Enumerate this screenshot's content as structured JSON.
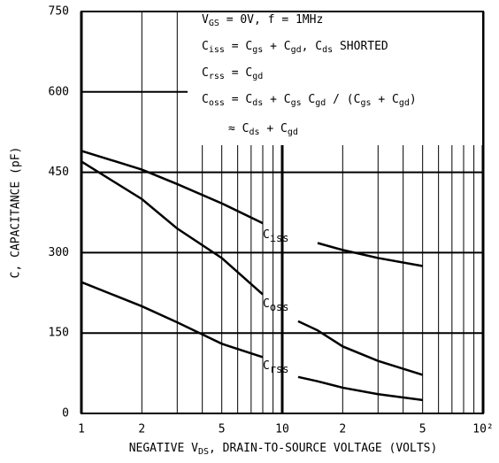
{
  "chart_data": {
    "type": "line",
    "y_label": "C, CAPACITANCE (pF)",
    "x_label": [
      "NEGATIVE V",
      "DS",
      ", DRAIN-TO-SOURCE VOLTAGE (VOLTS)"
    ],
    "annotations": [
      [
        "V",
        "GS",
        " = 0V, f = 1MHz"
      ],
      [
        "C",
        "iss",
        " = C",
        "gs",
        " + C",
        "gd",
        ", C",
        "ds",
        " SHORTED"
      ],
      [
        "C",
        "rss",
        " = C",
        "gd"
      ],
      [
        "C",
        "oss",
        " = C",
        "ds",
        " + C",
        "gs",
        " C",
        "gd",
        " / (C",
        "gs",
        " + C",
        "gd",
        ")"
      ],
      [
        "≈ C",
        "ds",
        " + C",
        "gd"
      ]
    ],
    "x": [
      1,
      2,
      3,
      5,
      8,
      10,
      12,
      15,
      20,
      30,
      50
    ],
    "series": [
      {
        "label": [
          "C",
          "iss"
        ],
        "color": "#000000",
        "values": [
          490,
          455,
          428,
          392,
          355,
          null,
          null,
          318,
          305,
          290,
          275
        ]
      },
      {
        "label": [
          "C",
          "oss"
        ],
        "color": "#000000",
        "values": [
          470,
          400,
          345,
          290,
          222,
          null,
          172,
          155,
          125,
          98,
          72
        ]
      },
      {
        "label": [
          "C",
          "rss"
        ],
        "color": "#000000",
        "values": [
          245,
          200,
          170,
          130,
          105,
          null,
          68,
          60,
          48,
          36,
          25
        ]
      }
    ],
    "xscale": "log",
    "xlim": [
      1,
      100
    ],
    "xticks": [
      1,
      2,
      5,
      10,
      {
        "value": 20,
        "label": "2"
      },
      {
        "value": 50,
        "label": "5"
      },
      {
        "value": 100,
        "label": "10²"
      }
    ],
    "x_minor_grid": [
      3,
      4,
      6,
      7,
      8,
      9,
      30,
      40,
      60,
      70,
      80,
      90
    ],
    "ylim": [
      0,
      750
    ],
    "yticks": [
      0,
      150,
      300,
      450,
      600,
      750
    ],
    "grid": true
  }
}
